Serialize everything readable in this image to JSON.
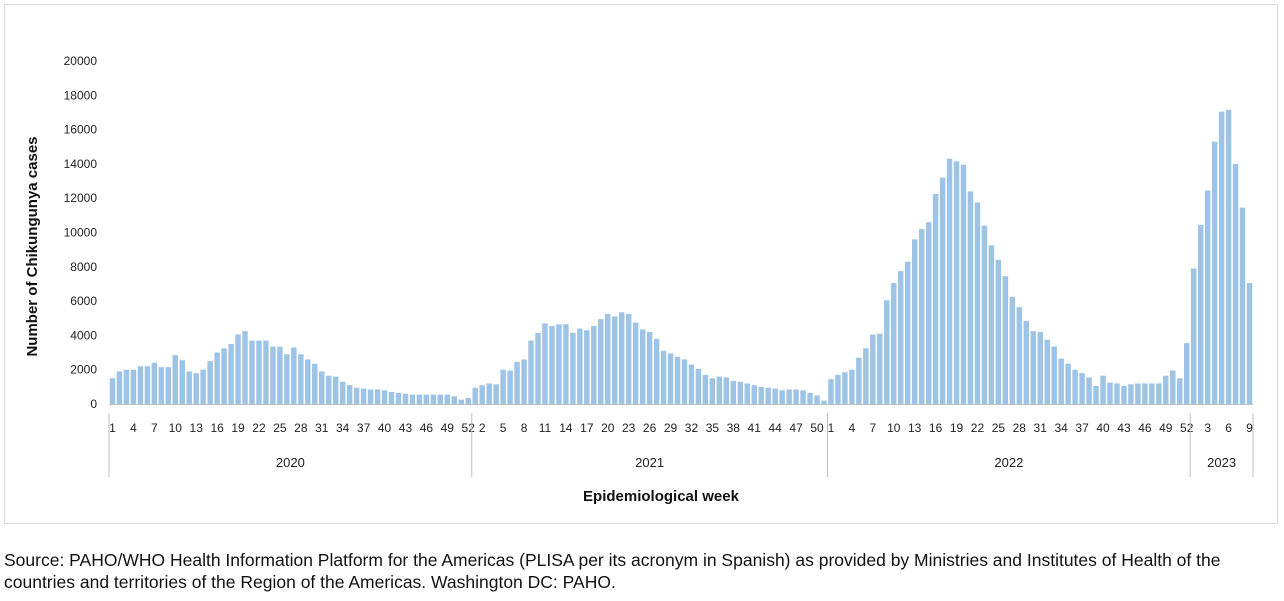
{
  "chart_data": {
    "type": "bar",
    "title": "",
    "xlabel": "Epidemiological week",
    "ylabel": "Number of Chikungunya cases",
    "ylim": [
      0,
      20000
    ],
    "yticks": [
      "0",
      "2000",
      "4000",
      "6000",
      "8000",
      "10000",
      "12000",
      "14000",
      "16000",
      "18000",
      "20000"
    ],
    "grid": false,
    "bar_color": "#9dc3e6",
    "years": [
      {
        "year": "2020",
        "values": [
          1500,
          1900,
          2000,
          2000,
          2200,
          2200,
          2400,
          2150,
          2150,
          2850,
          2550,
          1900,
          1800,
          2000,
          2500,
          3000,
          3250,
          3500,
          4050,
          4250,
          3700,
          3700,
          3700,
          3350,
          3350,
          2900,
          3300,
          2900,
          2600,
          2350,
          1900,
          1650,
          1600,
          1300,
          1100,
          950,
          900,
          850,
          850,
          800,
          700,
          650,
          600,
          550,
          550,
          550,
          550,
          550,
          550,
          450,
          250,
          350
        ]
      },
      {
        "year": "2021",
        "values": [
          950,
          1100,
          1200,
          1150,
          2000,
          1950,
          2450,
          2600,
          3700,
          4150,
          4700,
          4550,
          4650,
          4650,
          4150,
          4400,
          4300,
          4550,
          4950,
          5250,
          5100,
          5350,
          5250,
          4750,
          4350,
          4200,
          3800,
          3100,
          2950,
          2750,
          2600,
          2300,
          2050,
          1700,
          1500,
          1600,
          1550,
          1350,
          1300,
          1200,
          1100,
          1000,
          950,
          900,
          800,
          850,
          850,
          800,
          650,
          500,
          200
        ]
      },
      {
        "year": "2022",
        "values": [
          1450,
          1700,
          1850,
          2000,
          2700,
          3250,
          4050,
          4100,
          6050,
          7050,
          7750,
          8300,
          9600,
          10200,
          10600,
          12250,
          13200,
          14300,
          14150,
          13950,
          12400,
          11750,
          10400,
          9250,
          8400,
          7450,
          6250,
          5650,
          4850,
          4250,
          4200,
          3750,
          3350,
          2650,
          2350,
          2000,
          1800,
          1550,
          1050,
          1650,
          1250,
          1200,
          1050,
          1150,
          1200,
          1200,
          1200,
          1200,
          1650,
          1950,
          1500,
          3550
        ]
      },
      {
        "year": "2023",
        "values": [
          7900,
          10450,
          12450,
          15300,
          17050,
          17150,
          14000,
          11450,
          7050
        ]
      }
    ],
    "x_tick_labels": [
      [
        "1",
        "4",
        "7",
        "10",
        "13",
        "16",
        "19",
        "22",
        "25",
        "28",
        "31",
        "34",
        "37",
        "40",
        "43",
        "46",
        "49",
        "52"
      ],
      [
        "2",
        "5",
        "8",
        "11",
        "14",
        "17",
        "20",
        "23",
        "26",
        "29",
        "32",
        "35",
        "38",
        "41",
        "44",
        "47",
        "50"
      ],
      [
        "1",
        "4",
        "7",
        "10",
        "13",
        "16",
        "19",
        "22",
        "25",
        "28",
        "31",
        "34",
        "37",
        "40",
        "43",
        "46",
        "49",
        "52"
      ],
      [
        "3",
        "6",
        "9"
      ]
    ]
  },
  "source_text": "Source: PAHO/WHO Health Information Platform for the Americas (PLISA per its acronym in Spanish) as provided by Ministries and Institutes of Health of the countries and territories of the Region of the Americas. Washington DC: PAHO."
}
